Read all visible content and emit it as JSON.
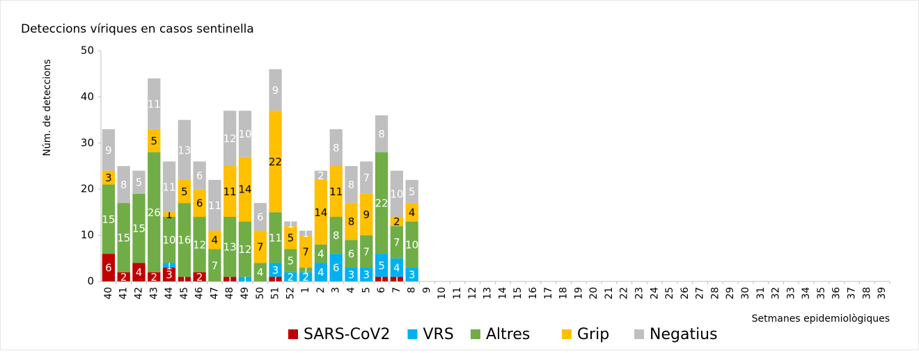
{
  "chart_data": {
    "type": "stacked_bar",
    "title": "Deteccions víriques en casos sentinella",
    "y_label": "Núm. de deteccions",
    "x_label": "Setmanes epidemiològiques",
    "categories": [
      "40",
      "41",
      "42",
      "43",
      "44",
      "45",
      "46",
      "47",
      "48",
      "49",
      "50",
      "51",
      "52",
      "1",
      "2",
      "3",
      "4",
      "5",
      "6",
      "7",
      "8",
      "9",
      "10",
      "11",
      "12",
      "13",
      "14",
      "15",
      "16",
      "17",
      "18",
      "19",
      "20",
      "21",
      "22",
      "23",
      "24",
      "25",
      "26",
      "27",
      "28",
      "29",
      "30",
      "31",
      "32",
      "33",
      "34",
      "35",
      "36",
      "37",
      "38",
      "39"
    ],
    "series": [
      {
        "name": "SARS-CoV2",
        "color": "#c00000",
        "values": [
          6,
          2,
          4,
          2,
          3,
          1,
          2,
          0,
          1,
          0,
          0,
          1,
          0,
          0,
          0,
          0,
          0,
          0,
          1,
          1,
          0,
          null,
          null,
          null,
          null,
          null,
          null,
          null,
          null,
          null,
          null,
          null,
          null,
          null,
          null,
          null,
          null,
          null,
          null,
          null,
          null,
          null,
          null,
          null,
          null,
          null,
          null,
          null,
          null,
          null,
          null,
          null
        ]
      },
      {
        "name": "VRS",
        "color": "#00b0f0",
        "values": [
          0,
          0,
          0,
          0,
          1,
          0,
          0,
          0,
          0,
          1,
          0,
          3,
          2,
          2,
          4,
          6,
          3,
          3,
          5,
          4,
          3,
          null,
          null,
          null,
          null,
          null,
          null,
          null,
          null,
          null,
          null,
          null,
          null,
          null,
          null,
          null,
          null,
          null,
          null,
          null,
          null,
          null,
          null,
          null,
          null,
          null,
          null,
          null,
          null,
          null,
          null,
          null
        ]
      },
      {
        "name": "Altres",
        "color": "#70ad47",
        "values": [
          15,
          15,
          15,
          26,
          10,
          16,
          12,
          7,
          13,
          12,
          4,
          11,
          5,
          1,
          4,
          8,
          6,
          7,
          22,
          7,
          10,
          null,
          null,
          null,
          null,
          null,
          null,
          null,
          null,
          null,
          null,
          null,
          null,
          null,
          null,
          null,
          null,
          null,
          null,
          null,
          null,
          null,
          null,
          null,
          null,
          null,
          null,
          null,
          null,
          null,
          null,
          null
        ]
      },
      {
        "name": "Grip",
        "color": "#ffc000",
        "values": [
          3,
          0,
          0,
          5,
          1,
          5,
          6,
          4,
          11,
          14,
          7,
          22,
          5,
          7,
          14,
          11,
          8,
          9,
          0,
          2,
          4,
          null,
          null,
          null,
          null,
          null,
          null,
          null,
          null,
          null,
          null,
          null,
          null,
          null,
          null,
          null,
          null,
          null,
          null,
          null,
          null,
          null,
          null,
          null,
          null,
          null,
          null,
          null,
          null,
          null,
          null,
          null
        ]
      },
      {
        "name": "Negatius",
        "color": "#bfbfbf",
        "values": [
          9,
          8,
          5,
          11,
          11,
          13,
          6,
          11,
          12,
          10,
          6,
          9,
          1,
          1,
          2,
          8,
          8,
          7,
          8,
          10,
          5,
          null,
          null,
          null,
          null,
          null,
          null,
          null,
          null,
          null,
          null,
          null,
          null,
          null,
          null,
          null,
          null,
          null,
          null,
          null,
          null,
          null,
          null,
          null,
          null,
          null,
          null,
          null,
          null,
          null,
          null,
          null
        ]
      }
    ],
    "ylim": [
      0,
      50
    ],
    "yticks": [
      0,
      10,
      20,
      30,
      40,
      50
    ],
    "legend": "bottom"
  }
}
